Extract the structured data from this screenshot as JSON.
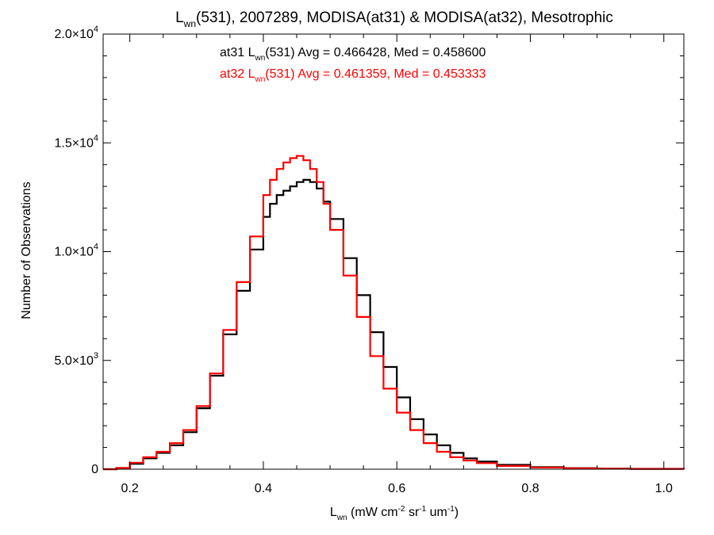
{
  "chart_data": {
    "type": "line",
    "step": true,
    "title": {
      "prefix": "L",
      "sub": "wn",
      "rest": "(531), 2007289, MODISA(at31) & MODISA(at32), Mesotrophic"
    },
    "xlabel": {
      "prefix": "L",
      "sub": "wn",
      "units": [
        {
          "t": " (mW cm",
          "sup": "-2"
        },
        {
          "t": " sr",
          "sup": "-1"
        },
        {
          "t": " um",
          "sup": "-1"
        },
        {
          "t": ")",
          "sup": ""
        }
      ]
    },
    "ylabel": "Number of Observations",
    "xlim": [
      0.16,
      1.03
    ],
    "ylim": [
      0,
      20000
    ],
    "x_ticks": [
      {
        "v": 0.2,
        "label": "0.2"
      },
      {
        "v": 0.4,
        "label": "0.4"
      },
      {
        "v": 0.6,
        "label": "0.6"
      },
      {
        "v": 0.8,
        "label": "0.8"
      },
      {
        "v": 1.0,
        "label": "1.0"
      }
    ],
    "y_ticks": [
      {
        "v": 0,
        "mant": "0",
        "exp": ""
      },
      {
        "v": 5000,
        "mant": "5.0×10",
        "exp": "3"
      },
      {
        "v": 10000,
        "mant": "1.0×10",
        "exp": "4"
      },
      {
        "v": 15000,
        "mant": "1.5×10",
        "exp": "4"
      },
      {
        "v": 20000,
        "mant": "2.0×10",
        "exp": "4"
      }
    ],
    "series": [
      {
        "name": "at31",
        "color": "#000000",
        "annotation": {
          "pre": "at31 L",
          "sub": "wn",
          "post": "(531) Avg = 0.466428, Med = 0.458600"
        },
        "x": [
          0.16,
          0.18,
          0.2,
          0.22,
          0.24,
          0.26,
          0.28,
          0.3,
          0.32,
          0.34,
          0.36,
          0.38,
          0.4,
          0.41,
          0.42,
          0.43,
          0.44,
          0.45,
          0.46,
          0.47,
          0.48,
          0.49,
          0.5,
          0.52,
          0.54,
          0.56,
          0.58,
          0.6,
          0.62,
          0.64,
          0.66,
          0.68,
          0.7,
          0.72,
          0.75,
          0.8,
          0.85,
          0.9,
          0.95,
          1.03
        ],
        "y": [
          0,
          50,
          250,
          500,
          750,
          1100,
          1700,
          2800,
          4300,
          6200,
          8200,
          10100,
          11600,
          12200,
          12600,
          12800,
          13000,
          13200,
          13300,
          13200,
          12900,
          12300,
          11500,
          9700,
          8000,
          6300,
          4700,
          3300,
          2300,
          1600,
          1100,
          750,
          500,
          350,
          200,
          100,
          50,
          30,
          20,
          10
        ]
      },
      {
        "name": "at32",
        "color": "#ff0000",
        "annotation": {
          "pre": "at32 L",
          "sub": "wn",
          "post": "(531) Avg = 0.461359, Med = 0.453333"
        },
        "x": [
          0.16,
          0.18,
          0.2,
          0.22,
          0.24,
          0.26,
          0.28,
          0.3,
          0.32,
          0.34,
          0.36,
          0.38,
          0.4,
          0.41,
          0.42,
          0.43,
          0.44,
          0.45,
          0.46,
          0.47,
          0.48,
          0.49,
          0.5,
          0.52,
          0.54,
          0.56,
          0.58,
          0.6,
          0.62,
          0.64,
          0.66,
          0.68,
          0.7,
          0.72,
          0.75,
          0.8,
          0.85,
          0.9,
          0.95,
          1.03
        ],
        "y": [
          0,
          60,
          300,
          550,
          800,
          1200,
          1800,
          2900,
          4400,
          6400,
          8600,
          10700,
          12600,
          13300,
          13800,
          14100,
          14300,
          14400,
          14200,
          13800,
          13200,
          12200,
          11000,
          8900,
          7000,
          5200,
          3700,
          2600,
          1800,
          1200,
          800,
          550,
          400,
          280,
          150,
          80,
          40,
          25,
          15,
          8
        ]
      }
    ]
  }
}
